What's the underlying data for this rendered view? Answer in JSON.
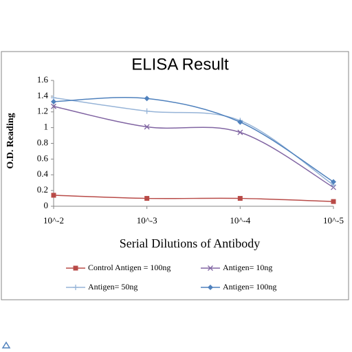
{
  "chart_data": {
    "type": "line",
    "title": "ELISA Result",
    "y_label": "O.D. Reading",
    "x_label": "Serial Dilutions  of Antibody",
    "categories": [
      "10^-2",
      "10^-3",
      "10^-4",
      "10^-5"
    ],
    "series": [
      {
        "name": "Control Antigen = 100ng",
        "color": "#b84a47",
        "marker": "square",
        "values": [
          0.14,
          0.1,
          0.1,
          0.06
        ]
      },
      {
        "name": "Antigen= 10ng",
        "color": "#8064a2",
        "marker": "x",
        "values": [
          1.27,
          1.01,
          0.94,
          0.24
        ]
      },
      {
        "name": "Antigen= 50ng",
        "color": "#95b3d7",
        "marker": "plus",
        "values": [
          1.38,
          1.21,
          1.09,
          0.27
        ]
      },
      {
        "name": "Antigen= 100ng",
        "color": "#4f81bd",
        "marker": "diamond",
        "values": [
          1.33,
          1.37,
          1.07,
          0.31
        ]
      }
    ],
    "ylim": [
      0,
      1.6
    ],
    "yticks": [
      0,
      0.2,
      0.4,
      0.6,
      0.8,
      1,
      1.2,
      1.4,
      1.6
    ],
    "grid": false,
    "legend": "bottom"
  }
}
